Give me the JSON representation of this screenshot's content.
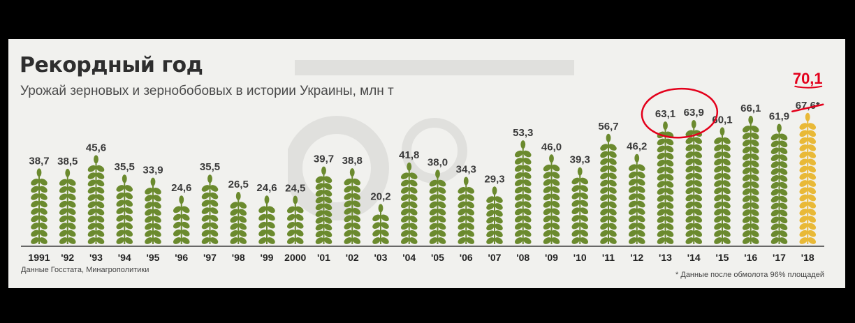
{
  "header": {
    "title": "Рекордный год",
    "subtitle": "Урожай зерновых и зернобобовых в истории Украины, млн т"
  },
  "footer": {
    "source": "Данные Госстата, Минагрополитики",
    "footnote": "* Данные после обмолота 96% площадей"
  },
  "colors": {
    "wheat_green": "#6b8a2e",
    "wheat_highlight": "#e9b937",
    "annotation_red": "#e3001b"
  },
  "chart_data": {
    "type": "bar",
    "title": "Рекордный год",
    "subtitle": "Урожай зерновых и зернобобовых в истории Украины, млн т",
    "categories": [
      "1991",
      "'92",
      "'93",
      "'94",
      "'95",
      "'96",
      "'97",
      "'98",
      "'99",
      "2000",
      "'01",
      "'02",
      "'03",
      "'04",
      "'05",
      "'06",
      "'07",
      "'08",
      "'09",
      "'10",
      "'11",
      "'12",
      "'13",
      "'14",
      "'15",
      "'16",
      "'17",
      "'18"
    ],
    "value_labels": [
      "38,7",
      "38,5",
      "45,6",
      "35,5",
      "33,9",
      "24,6",
      "35,5",
      "26,5",
      "24,6",
      "24,5",
      "39,7",
      "38,8",
      "20,2",
      "41,8",
      "38,0",
      "34,3",
      "29,3",
      "53,3",
      "46,0",
      "39,3",
      "56,7",
      "46,2",
      "63,1",
      "63,9",
      "60,1",
      "66,1",
      "61,9",
      "67,6*"
    ],
    "values": [
      38.7,
      38.5,
      45.6,
      35.5,
      33.9,
      24.6,
      35.5,
      26.5,
      24.6,
      24.5,
      39.7,
      38.8,
      20.2,
      41.8,
      38.0,
      34.3,
      29.3,
      53.3,
      46.0,
      39.3,
      56.7,
      46.2,
      63.1,
      63.9,
      60.1,
      66.1,
      61.9,
      67.6
    ],
    "highlight_index": 27,
    "circled_indices": [
      22,
      23
    ],
    "annotation": {
      "handwritten_value": "70,1",
      "crossed_out_label": "67,6*"
    }
  }
}
